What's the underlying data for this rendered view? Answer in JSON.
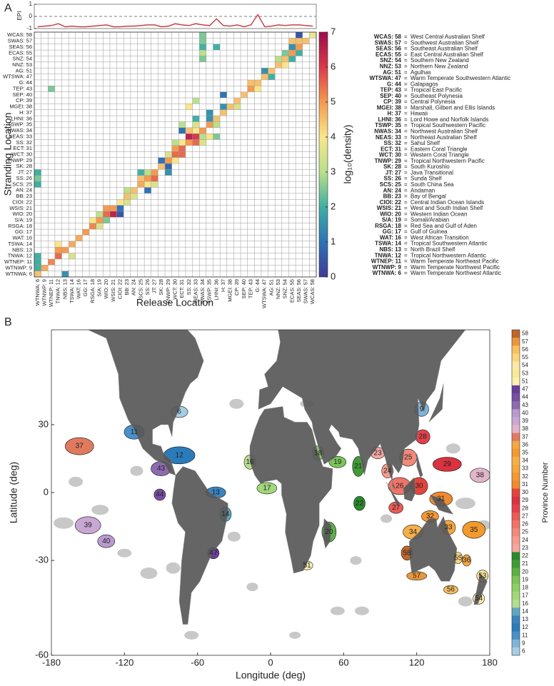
{
  "chart_data": [
    {
      "type": "heatmap",
      "panel": "A",
      "xlabel": "Release Location",
      "ylabel": "Stranding Location",
      "categories": [
        "WTNWA: 6",
        "WTNWP: 9",
        "WTNEP: 11",
        "TNWA: 12",
        "NBS: 13",
        "TSWA: 14",
        "WAT: 16",
        "GG: 17",
        "RSGA: 18",
        "S/A: 19",
        "WIO: 20",
        "WSIS: 21",
        "CIOI: 22",
        "BB: 23",
        "AN: 24",
        "SCS: 25",
        "SS: 26",
        "JT: 27",
        "SK: 28",
        "TNWP: 29",
        "WCT: 30",
        "ECT: 31",
        "SS: 32",
        "NEAS: 33",
        "NWAS: 34",
        "TSWP: 35",
        "LHNI: 36",
        "H: 37",
        "MGEI: 38",
        "CP: 39",
        "SEP: 40",
        "TEP: 43",
        "G: 44",
        "WTSWA: 47",
        "AG: 51",
        "NNZ: 53",
        "SNZ: 54",
        "ECAS: 55",
        "SEAS: 56",
        "SWAS: 57",
        "WCAS: 58"
      ],
      "names": [
        "Warm Temperate Northwest Atlantic",
        "Warm Temperate Northwest Pacific",
        "Warm Temperate Northeast Pacific",
        "Tropical Northwestern Atlantic",
        "North Brazil Shelf",
        "Tropical Southwestern Atlantic",
        "West African Transition",
        "Gulf of Guinea",
        "Red Sea and Gulf of Aden",
        "Somali/Arabian",
        "Western Indian Ocean",
        "West and South Indian Shelf",
        "Central Indian Ocean Islands",
        "Bay of Bengal",
        "Andaman",
        "South China Sea",
        "Sunda Shelf",
        "Java Transitional",
        "South Kuroshio",
        "Tropical Northwestern Pacific",
        "Western Coral Triangle",
        "Eastern Coral Triangle",
        "Sahul Shelf",
        "Northeast Australian Shelf",
        "Northwest Australian Shelf",
        "Tropical Southwestern Pacific",
        "Lord Howe and Norfolk Islands",
        "Hawaii",
        "Marshall, Gilbert and Ellis Islands",
        "Central Polynesia",
        "Southeast Polynesia",
        "Tropical East Pacific",
        "Galapagos",
        "Warm Temperate Southwestern Atlantic",
        "Agulhas",
        "Northern New Zealand",
        "Southern New Zealand",
        "East Central Australian Shelf",
        "Southeast Australian Shelf",
        "Southwest Australian Shelf",
        "West Central Australian Shelf"
      ],
      "separator": "=",
      "cells": [
        [
          0,
          0,
          4.5
        ],
        [
          1,
          1,
          4.8
        ],
        [
          2,
          2,
          5.2
        ],
        [
          3,
          3,
          5.5
        ],
        [
          4,
          4,
          5
        ],
        [
          5,
          5,
          4.8
        ],
        [
          6,
          6,
          4.8
        ],
        [
          7,
          7,
          5
        ],
        [
          8,
          8,
          5.2
        ],
        [
          9,
          9,
          5
        ],
        [
          10,
          10,
          5.5
        ],
        [
          11,
          11,
          5
        ],
        [
          12,
          12,
          4
        ],
        [
          13,
          13,
          4.5
        ],
        [
          14,
          14,
          4.5
        ],
        [
          15,
          15,
          4.8
        ],
        [
          16,
          16,
          5
        ],
        [
          17,
          17,
          5
        ],
        [
          18,
          18,
          4.5
        ],
        [
          19,
          19,
          5
        ],
        [
          20,
          20,
          5.5
        ],
        [
          21,
          21,
          5.5
        ],
        [
          22,
          22,
          5
        ],
        [
          23,
          23,
          6
        ],
        [
          24,
          24,
          5
        ],
        [
          25,
          25,
          5
        ],
        [
          26,
          26,
          4.5
        ],
        [
          27,
          27,
          4.5
        ],
        [
          28,
          28,
          4.5
        ],
        [
          29,
          29,
          4.5
        ],
        [
          30,
          30,
          4.5
        ],
        [
          31,
          31,
          5
        ],
        [
          32,
          32,
          4.5
        ],
        [
          33,
          33,
          4.5
        ],
        [
          34,
          34,
          4.5
        ],
        [
          35,
          35,
          4.5
        ],
        [
          36,
          36,
          4.5
        ],
        [
          37,
          37,
          5
        ],
        [
          38,
          38,
          5
        ],
        [
          39,
          39,
          4.5
        ],
        [
          40,
          40,
          3.8
        ],
        [
          4,
          0,
          1.5
        ],
        [
          0,
          1,
          2
        ],
        [
          0,
          2,
          2
        ],
        [
          0,
          3,
          2
        ],
        [
          3,
          4,
          5
        ],
        [
          5,
          3,
          3.5
        ],
        [
          3,
          5,
          4
        ],
        [
          8,
          9,
          4
        ],
        [
          9,
          8,
          3.5
        ],
        [
          9,
          10,
          3
        ],
        [
          10,
          9,
          2.5
        ],
        [
          11,
          10,
          6.5
        ],
        [
          10,
          11,
          5
        ],
        [
          12,
          10,
          0.5
        ],
        [
          12,
          11,
          1
        ],
        [
          13,
          12,
          3.5
        ],
        [
          13,
          14,
          3
        ],
        [
          14,
          13,
          3.5
        ],
        [
          16,
          14,
          1
        ],
        [
          0,
          15,
          2
        ],
        [
          0,
          16,
          2.5
        ],
        [
          0,
          17,
          2
        ],
        [
          16,
          15,
          4
        ],
        [
          15,
          16,
          4.5
        ],
        [
          17,
          16,
          5.5
        ],
        [
          16,
          17,
          3
        ],
        [
          17,
          15,
          3.5
        ],
        [
          15,
          17,
          2
        ],
        [
          19,
          17,
          1.5
        ],
        [
          18,
          19,
          1
        ],
        [
          19,
          18,
          0.8
        ],
        [
          20,
          19,
          4
        ],
        [
          19,
          20,
          3.5
        ],
        [
          20,
          21,
          5
        ],
        [
          21,
          20,
          5.5
        ],
        [
          20,
          22,
          3
        ],
        [
          21,
          22,
          4
        ],
        [
          22,
          23,
          6.5
        ],
        [
          23,
          22,
          5.5
        ],
        [
          21,
          24,
          1
        ],
        [
          23,
          24,
          4
        ],
        [
          24,
          23,
          3
        ],
        [
          22,
          24,
          4.5
        ],
        [
          24,
          22,
          3.5
        ],
        [
          25,
          23,
          4
        ],
        [
          23,
          25,
          3.5
        ],
        [
          21,
          25,
          3
        ],
        [
          25,
          26,
          1.5
        ],
        [
          26,
          25,
          3
        ],
        [
          23,
          26,
          2
        ],
        [
          26,
          23,
          2.5
        ],
        [
          25,
          27,
          1.5
        ],
        [
          27,
          28,
          1.5
        ],
        [
          22,
          28,
          4
        ],
        [
          29,
          28,
          3.5
        ],
        [
          23,
          29,
          3
        ],
        [
          27,
          30,
          1
        ],
        [
          2,
          31,
          2.5
        ],
        [
          32,
          31,
          4
        ],
        [
          31,
          32,
          4.5
        ],
        [
          34,
          33,
          2
        ],
        [
          33,
          34,
          1.5
        ],
        [
          36,
          35,
          4
        ],
        [
          35,
          36,
          3
        ],
        [
          24,
          36,
          2.5
        ],
        [
          37,
          36,
          2
        ],
        [
          36,
          37,
          2.5
        ],
        [
          24,
          37,
          3
        ],
        [
          37,
          38,
          1.5
        ],
        [
          38,
          37,
          2
        ],
        [
          24,
          38,
          2
        ],
        [
          26,
          38,
          2
        ],
        [
          38,
          39,
          4.5
        ],
        [
          37,
          39,
          4.5
        ],
        [
          24,
          39,
          2.5
        ],
        [
          38,
          40,
          0.5
        ],
        [
          24,
          40,
          2.5
        ]
      ],
      "clim": [
        0,
        7
      ],
      "colorbar_ticks": [
        0,
        1,
        2,
        3,
        4,
        5,
        6,
        7
      ],
      "colorbar_label": "log₁₀(density)",
      "colormap": [
        "#3d3c98",
        "#2f72b6",
        "#3fb0a3",
        "#b9e08b",
        "#f9e68c",
        "#f59a50",
        "#d93a4a",
        "#9b0e4b"
      ],
      "grid_color": "#9a9a9a"
    },
    {
      "type": "line",
      "ylabel": "EPI",
      "ylim": [
        -1,
        1
      ],
      "yticks": [
        1,
        0,
        -1
      ],
      "reference_line": 0,
      "color": "#c9404a",
      "values": [
        -0.85,
        -0.8,
        -0.75,
        -0.6,
        -0.85,
        -0.8,
        -0.85,
        -0.85,
        -0.8,
        -0.75,
        -0.7,
        -0.85,
        -0.85,
        -0.8,
        -0.8,
        -0.75,
        -0.7,
        -0.7,
        -0.85,
        -0.8,
        -0.6,
        -0.7,
        -0.75,
        -0.6,
        -0.7,
        -0.75,
        -0.2,
        -0.75,
        -0.8,
        -0.7,
        -0.85,
        -0.7,
        0.15,
        -0.85,
        -0.8,
        -0.7,
        -0.75,
        -0.7,
        -0.7,
        -0.75,
        -0.8
      ]
    },
    {
      "type": "map",
      "panel": "B",
      "projection": "mercator",
      "xlabel": "Longitude (deg)",
      "ylabel": "Latitude (deg)",
      "xlim": [
        -180,
        180
      ],
      "ylim": [
        -60,
        60
      ],
      "xticks": [
        -180,
        -120,
        -60,
        0,
        60,
        120,
        180
      ],
      "yticks": [
        30,
        0,
        -30,
        -60
      ],
      "land_color": "#585858",
      "eez_color": "#c8c8c8",
      "colorbar": {
        "label": "Province Number",
        "ticks": [
          58,
          57,
          56,
          55,
          54,
          53,
          51,
          47,
          44,
          43,
          40,
          39,
          38,
          37,
          36,
          35,
          34,
          33,
          32,
          31,
          30,
          29,
          28,
          27,
          26,
          25,
          24,
          23,
          22,
          21,
          20,
          19,
          18,
          17,
          16,
          14,
          13,
          12,
          11,
          9,
          6
        ],
        "colors": [
          "#c0652b",
          "#e9973d",
          "#f9c060",
          "#fbd67c",
          "#fde7a8",
          "#fbe897",
          "#f9f2b0",
          "#6a3d9a",
          "#7a4ea3",
          "#8c6bb1",
          "#b89ad0",
          "#c9a6d3",
          "#e2b5c8",
          "#e07a5f",
          "#f4a640",
          "#f29a2e",
          "#f6b04a",
          "#f5a63e",
          "#f39833",
          "#f08a30",
          "#e4443c",
          "#d93240",
          "#e3414a",
          "#ea5c55",
          "#ef7467",
          "#f3897a",
          "#f59b8e",
          "#f4a8a0",
          "#2a8a2a",
          "#3f9c34",
          "#5bb047",
          "#7cc558",
          "#8fcf68",
          "#a3d77a",
          "#b5de8c",
          "#5fa8c0",
          "#3a83bf",
          "#2b7bba",
          "#4a90c9",
          "#7fb4d9",
          "#a6cee3"
        ]
      },
      "region_labels": [
        37,
        6,
        11,
        12,
        43,
        44,
        39,
        40,
        13,
        14,
        47,
        16,
        17,
        18,
        19,
        21,
        22,
        20,
        51,
        23,
        9,
        25,
        28,
        24,
        26,
        29,
        38,
        30,
        31,
        27,
        32,
        33,
        34,
        35,
        58,
        55,
        36,
        57,
        56,
        53,
        54
      ]
    }
  ]
}
